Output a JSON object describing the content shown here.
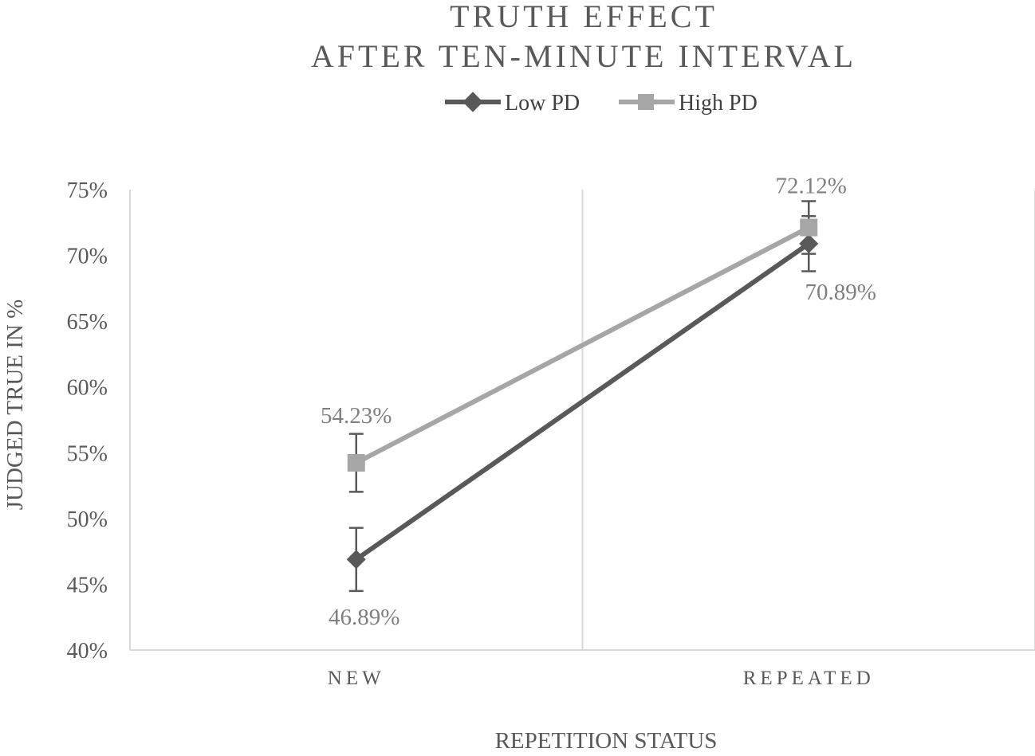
{
  "chart_data": {
    "type": "line",
    "title_lines": [
      "TRUTH EFFECT",
      "AFTER TEN-MINUTE INTERVAL"
    ],
    "xlabel": "REPETITION STATUS",
    "ylabel": "JUDGED TRUE IN %",
    "categories": [
      "NEW",
      "REPEATED"
    ],
    "ylim": [
      0.4,
      0.75
    ],
    "yticks": [
      0.4,
      0.45,
      0.5,
      0.55,
      0.6,
      0.65,
      0.7,
      0.75
    ],
    "ytick_labels": [
      "40%",
      "45%",
      "50%",
      "55%",
      "60%",
      "65%",
      "70%",
      "75%"
    ],
    "grid": "vertical",
    "legend_position": "top",
    "series": [
      {
        "name": "Low PD",
        "marker": "diamond",
        "color": "#595959",
        "values": [
          0.4689,
          0.7089
        ],
        "error": [
          0.024,
          0.021
        ],
        "data_labels": [
          "46.89%",
          "70.89%"
        ]
      },
      {
        "name": "High PD",
        "marker": "square",
        "color": "#a6a6a6",
        "values": [
          0.5423,
          0.7212
        ],
        "error": [
          0.022,
          0.02
        ],
        "data_labels": [
          "54.23%",
          "72.12%"
        ]
      }
    ]
  }
}
